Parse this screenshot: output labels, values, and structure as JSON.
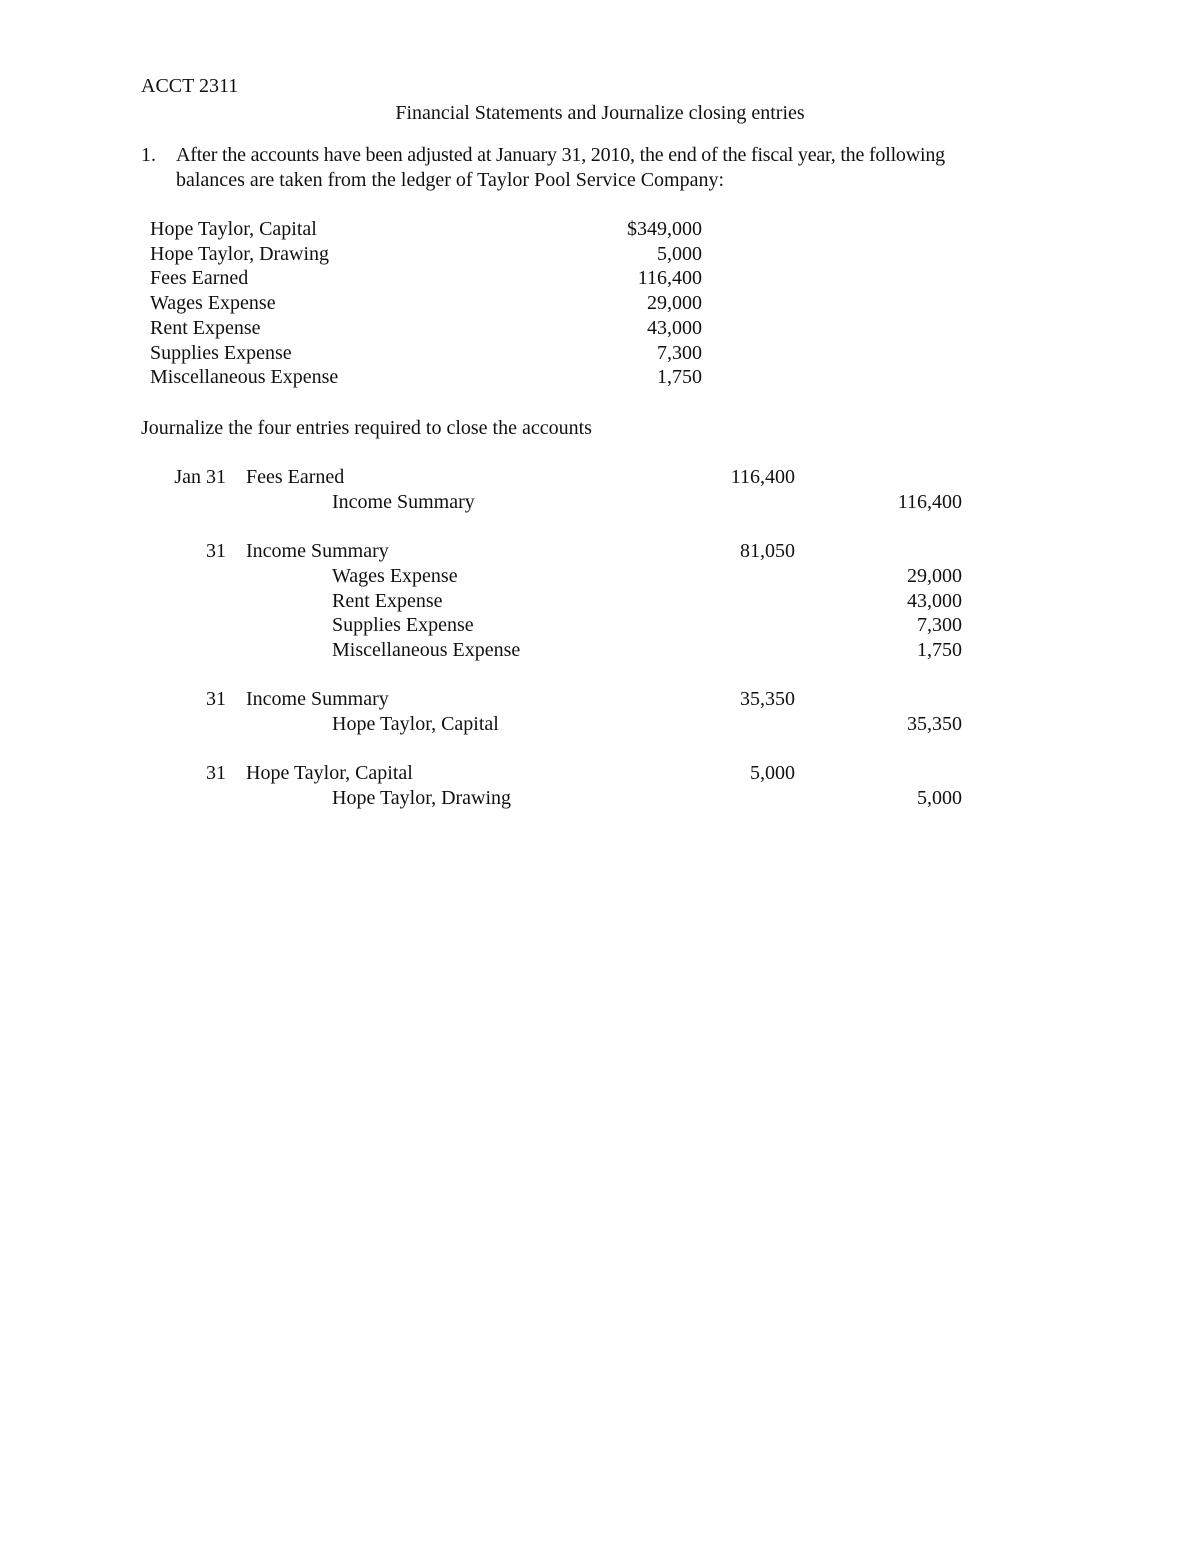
{
  "header": {
    "course": "ACCT 2311",
    "title": "Financial Statements and Journalize closing entries"
  },
  "problem": {
    "number": "1.",
    "text_line1": "After the accounts have been adjusted at January 31, 2010, the end of the fiscal year, the following",
    "text_line2": "balances are taken from the ledger of Taylor Pool Service Company:"
  },
  "balances": [
    {
      "account": "Hope Taylor, Capital",
      "amount": "$349,000"
    },
    {
      "account": "Hope Taylor, Drawing",
      "amount": "5,000"
    },
    {
      "account": "Fees Earned",
      "amount": "116,400"
    },
    {
      "account": "Wages Expense",
      "amount": "29,000"
    },
    {
      "account": "Rent Expense",
      "amount": "43,000"
    },
    {
      "account": "Supplies Expense",
      "amount": "7,300"
    },
    {
      "account": "Miscellaneous Expense",
      "amount": "1,750"
    }
  ],
  "instruction": "Journalize the four entries required to close the accounts",
  "journal": [
    {
      "lines": [
        {
          "date": "Jan 31",
          "account": "Fees Earned",
          "indent": false,
          "debit": "116,400",
          "credit": ""
        },
        {
          "date": "",
          "account": "Income Summary",
          "indent": true,
          "debit": "",
          "credit": "116,400"
        }
      ]
    },
    {
      "lines": [
        {
          "date": "31",
          "account": "Income Summary",
          "indent": false,
          "debit": "81,050",
          "credit": ""
        },
        {
          "date": "",
          "account": "Wages Expense",
          "indent": true,
          "debit": "",
          "credit": "29,000"
        },
        {
          "date": "",
          "account": "Rent Expense",
          "indent": true,
          "debit": "",
          "credit": "43,000"
        },
        {
          "date": "",
          "account": "Supplies Expense",
          "indent": true,
          "debit": "",
          "credit": "7,300"
        },
        {
          "date": "",
          "account": "Miscellaneous Expense",
          "indent": true,
          "debit": "",
          "credit": "1,750"
        }
      ]
    },
    {
      "lines": [
        {
          "date": "31",
          "account": "Income Summary",
          "indent": false,
          "debit": "35,350",
          "credit": ""
        },
        {
          "date": "",
          "account": "Hope Taylor, Capital",
          "indent": true,
          "debit": "",
          "credit": "35,350"
        }
      ]
    },
    {
      "lines": [
        {
          "date": "31",
          "account": "Hope Taylor, Capital",
          "indent": false,
          "debit": "5,000",
          "credit": ""
        },
        {
          "date": "",
          "account": "Hope Taylor, Drawing",
          "indent": true,
          "debit": "",
          "credit": "5,000"
        }
      ]
    }
  ]
}
